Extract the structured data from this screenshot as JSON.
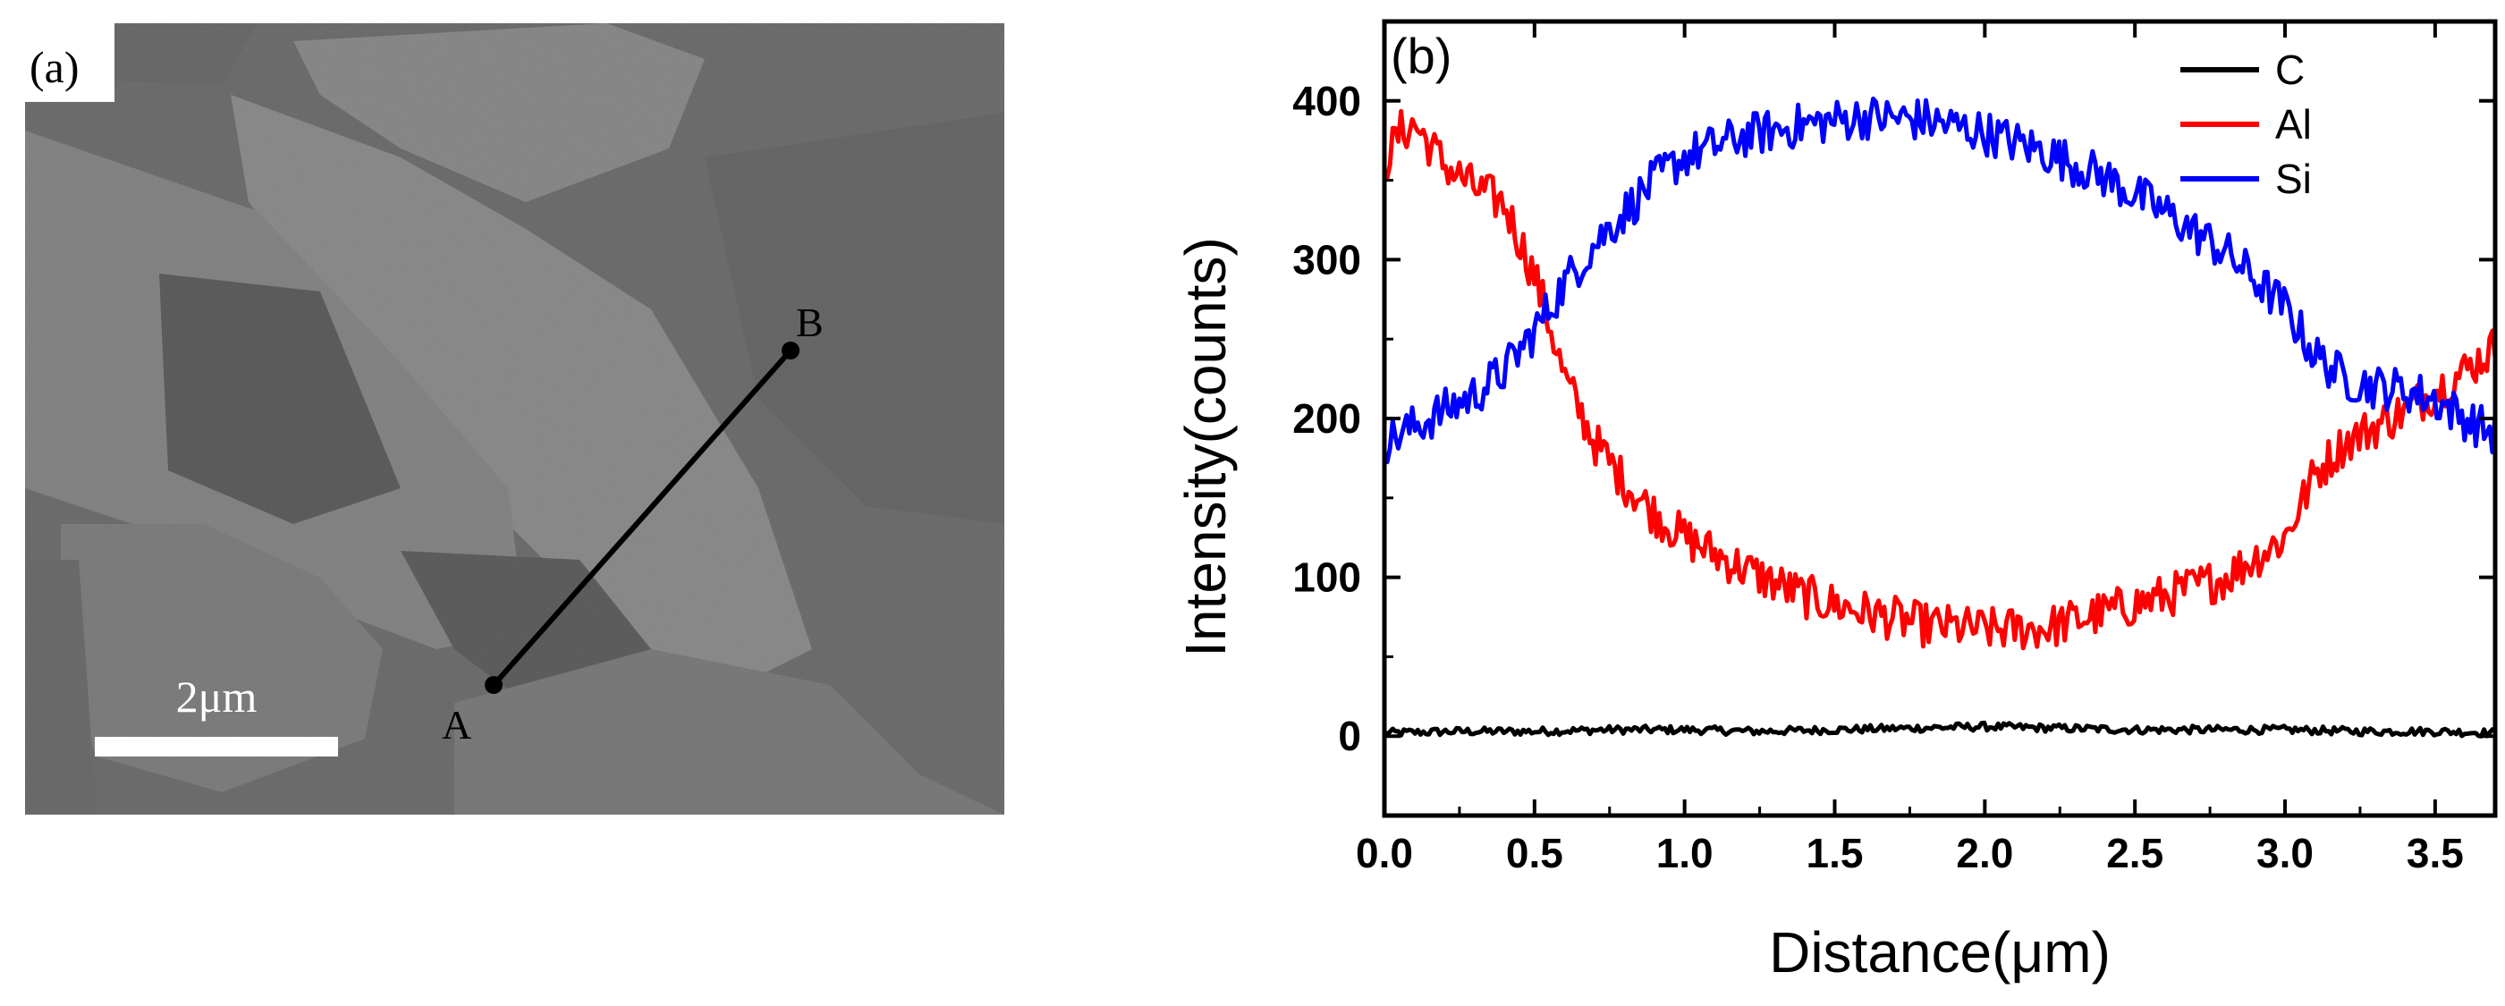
{
  "panel_a": {
    "label": "(a)",
    "scale_bar_label": "2μm",
    "point_a_label": "A",
    "point_b_label": "B"
  },
  "chart_data": {
    "type": "line",
    "panel_label": "(b)",
    "title": "",
    "xlabel": "Distance(μm)",
    "ylabel": "Intensity(counts)",
    "xlim": [
      0.0,
      3.7
    ],
    "ylim": [
      -50,
      450
    ],
    "xticks": [
      0.0,
      0.5,
      1.0,
      1.5,
      2.0,
      2.5,
      3.0,
      3.5
    ],
    "xtick_labels": [
      "0.0",
      "0.5",
      "1.0",
      "1.5",
      "2.0",
      "2.5",
      "3.0",
      "3.5"
    ],
    "yticks": [
      0,
      100,
      200,
      300,
      400
    ],
    "ytick_labels": [
      "0",
      "100",
      "200",
      "300",
      "400"
    ],
    "grid": false,
    "legend_position": "top-right",
    "series": [
      {
        "name": "C",
        "color": "#000000",
        "x": [
          0.0,
          0.25,
          0.5,
          0.75,
          1.0,
          1.25,
          1.5,
          1.75,
          2.0,
          2.25,
          2.5,
          2.75,
          3.0,
          3.25,
          3.5,
          3.7
        ],
        "values": [
          2,
          3,
          3,
          4,
          4,
          3,
          4,
          5,
          6,
          5,
          4,
          4,
          4,
          3,
          3,
          2
        ],
        "noise": 2.5
      },
      {
        "name": "Al",
        "color": "#ff0000",
        "x": [
          0.0,
          0.05,
          0.1,
          0.2,
          0.3,
          0.4,
          0.5,
          0.55,
          0.6,
          0.7,
          0.8,
          0.9,
          1.0,
          1.2,
          1.4,
          1.6,
          1.8,
          2.0,
          2.2,
          2.4,
          2.6,
          2.8,
          3.0,
          3.1,
          3.2,
          3.4,
          3.6,
          3.7
        ],
        "values": [
          360,
          380,
          385,
          360,
          345,
          335,
          290,
          260,
          225,
          185,
          160,
          140,
          125,
          105,
          88,
          78,
          70,
          67,
          68,
          78,
          88,
          100,
          125,
          165,
          185,
          205,
          230,
          245
        ],
        "noise": 14
      },
      {
        "name": "Si",
        "color": "#0000ff",
        "x": [
          0.0,
          0.1,
          0.2,
          0.3,
          0.4,
          0.5,
          0.6,
          0.7,
          0.8,
          0.9,
          1.0,
          1.2,
          1.4,
          1.6,
          1.8,
          2.0,
          2.2,
          2.4,
          2.6,
          2.8,
          3.0,
          3.1,
          3.2,
          3.3,
          3.4,
          3.5,
          3.6,
          3.7
        ],
        "values": [
          185,
          195,
          205,
          215,
          230,
          255,
          285,
          310,
          330,
          350,
          365,
          378,
          385,
          390,
          388,
          380,
          368,
          352,
          330,
          305,
          270,
          240,
          225,
          220,
          218,
          212,
          200,
          190
        ],
        "noise": 14
      }
    ]
  }
}
